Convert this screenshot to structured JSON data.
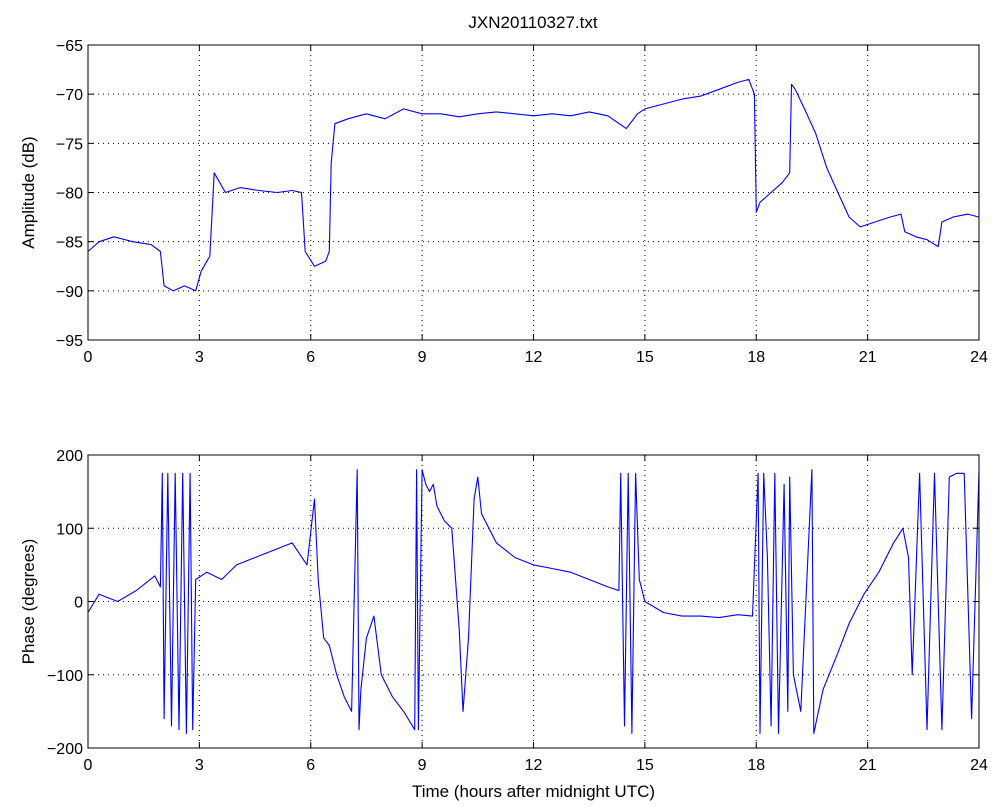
{
  "figure": {
    "title": "JXN20110327.txt"
  },
  "chart_data": [
    {
      "type": "line",
      "title": "JXN20110327.txt",
      "xlabel": "",
      "ylabel": "Amplitude (dB)",
      "xlim": [
        0,
        24
      ],
      "ylim": [
        -95,
        -65
      ],
      "xticks": [
        0,
        3,
        6,
        9,
        12,
        15,
        18,
        21,
        24
      ],
      "yticks": [
        -95,
        -90,
        -85,
        -80,
        -75,
        -70,
        -65
      ],
      "grid": true,
      "color": "#0000ff",
      "series": [
        {
          "x": [
            0,
            0.3,
            0.7,
            1.2,
            1.7,
            1.95,
            2.05,
            2.3,
            2.6,
            2.9,
            3.05,
            3.2,
            3.28,
            3.4,
            3.7,
            4.1,
            4.6,
            5.1,
            5.5,
            5.75,
            5.85,
            6.1,
            6.4,
            6.5,
            6.55,
            6.65,
            7,
            7.5,
            8,
            8.5,
            9,
            9.5,
            10,
            10.5,
            11,
            11.5,
            12,
            12.5,
            13,
            13.5,
            14,
            14.5,
            14.8,
            15,
            15.5,
            16,
            16.5,
            17,
            17.5,
            17.8,
            17.95,
            18.0,
            18.1,
            18.4,
            18.7,
            18.9,
            18.95,
            19.05,
            19.3,
            19.6,
            19.9,
            20.2,
            20.5,
            20.8,
            21.2,
            21.6,
            21.9,
            22.0,
            22.3,
            22.6,
            22.9,
            23.0,
            23.3,
            23.7,
            24
          ],
          "y": [
            -86,
            -85,
            -84.5,
            -85,
            -85.3,
            -86,
            -89.5,
            -90,
            -89.5,
            -90,
            -88,
            -87,
            -86.5,
            -78,
            -80,
            -79.5,
            -79.8,
            -80,
            -79.8,
            -80,
            -86,
            -87.5,
            -87,
            -86,
            -77,
            -73,
            -72.5,
            -72,
            -72.5,
            -71.5,
            -72,
            -72,
            -72.3,
            -72,
            -71.8,
            -72,
            -72.2,
            -72,
            -72.2,
            -71.8,
            -72.2,
            -73.5,
            -72,
            -71.5,
            -71,
            -70.5,
            -70.2,
            -69.5,
            -68.8,
            -68.5,
            -70,
            -82,
            -81,
            -80,
            -79,
            -78,
            -69,
            -69.5,
            -71.5,
            -74,
            -77.5,
            -80,
            -82.5,
            -83.5,
            -83,
            -82.5,
            -82.2,
            -84,
            -84.5,
            -84.8,
            -85.5,
            -83,
            -82.5,
            -82.2,
            -82.5
          ]
        }
      ]
    },
    {
      "type": "line",
      "title": "",
      "xlabel": "Time (hours after midnight UTC)",
      "ylabel": "Phase (degrees)",
      "xlim": [
        0,
        24
      ],
      "ylim": [
        -200,
        200
      ],
      "xticks": [
        0,
        3,
        6,
        9,
        12,
        15,
        18,
        21,
        24
      ],
      "yticks": [
        -200,
        -100,
        0,
        100,
        200
      ],
      "grid": true,
      "color": "#0000ff",
      "series": [
        {
          "x": [
            0,
            0.3,
            0.8,
            1.3,
            1.8,
            1.95,
            2.0,
            2.05,
            2.15,
            2.25,
            2.35,
            2.45,
            2.55,
            2.65,
            2.75,
            2.82,
            2.9,
            3.2,
            3.6,
            4.0,
            4.5,
            5.0,
            5.5,
            5.9,
            6.1,
            6.2,
            6.35,
            6.5,
            6.7,
            6.9,
            7.1,
            7.25,
            7.3,
            7.35,
            7.5,
            7.7,
            7.9,
            8.2,
            8.5,
            8.8,
            8.85,
            8.9,
            9.0,
            9.1,
            9.2,
            9.3,
            9.4,
            9.6,
            9.8,
            10.0,
            10.1,
            10.25,
            10.4,
            10.5,
            10.6,
            10.8,
            11.0,
            11.5,
            12.0,
            12.5,
            13.0,
            13.5,
            14.0,
            14.3,
            14.35,
            14.45,
            14.55,
            14.65,
            14.75,
            14.85,
            15.0,
            15.5,
            16.0,
            16.5,
            17.0,
            17.5,
            17.9,
            18.05,
            18.1,
            18.2,
            18.3,
            18.4,
            18.5,
            18.6,
            18.75,
            18.85,
            18.9,
            19.0,
            19.2,
            19.5,
            19.55,
            19.8,
            20.2,
            20.5,
            20.9,
            21.3,
            21.7,
            21.95,
            22.1,
            22.2,
            22.4,
            22.6,
            22.8,
            23.0,
            23.2,
            23.4,
            23.6,
            23.8,
            24.0
          ],
          "y": [
            -15,
            10,
            0,
            15,
            35,
            20,
            175,
            -160,
            175,
            -170,
            175,
            -175,
            175,
            -180,
            175,
            -175,
            30,
            40,
            30,
            50,
            60,
            70,
            80,
            50,
            140,
            30,
            -50,
            -60,
            -100,
            -130,
            -150,
            180,
            -175,
            -120,
            -50,
            -20,
            -100,
            -130,
            -150,
            -175,
            180,
            -175,
            180,
            160,
            150,
            160,
            130,
            110,
            100,
            -40,
            -150,
            -50,
            140,
            170,
            120,
            100,
            80,
            60,
            50,
            45,
            40,
            30,
            20,
            15,
            175,
            -170,
            175,
            -180,
            175,
            30,
            0,
            -15,
            -20,
            -20,
            -22,
            -18,
            -20,
            175,
            -180,
            175,
            60,
            -170,
            175,
            -180,
            160,
            -150,
            170,
            -100,
            -150,
            180,
            -180,
            -120,
            -70,
            -30,
            10,
            40,
            80,
            100,
            60,
            -100,
            175,
            -175,
            175,
            -175,
            170,
            175,
            175,
            -160,
            178
          ]
        }
      ]
    }
  ]
}
